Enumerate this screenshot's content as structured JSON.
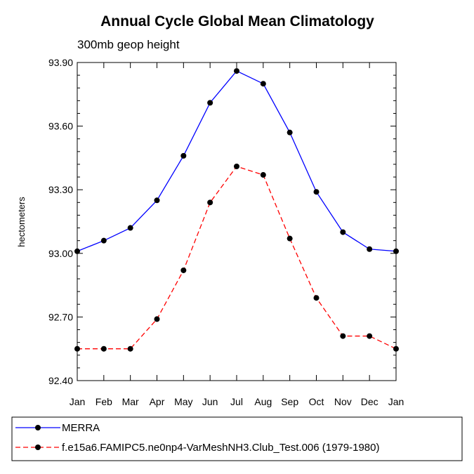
{
  "chart_data": {
    "type": "line",
    "title": "Annual Cycle Global Mean Climatology",
    "subtitle": "300mb geop height",
    "xlabel": "",
    "ylabel": "hectometers",
    "categories": [
      "Jan",
      "Feb",
      "Mar",
      "Apr",
      "May",
      "Jun",
      "Jul",
      "Aug",
      "Sep",
      "Oct",
      "Nov",
      "Dec",
      "Jan"
    ],
    "ylim": [
      92.4,
      93.9
    ],
    "yticks": [
      "92.40",
      "92.70",
      "93.00",
      "93.30",
      "93.60",
      "93.90"
    ],
    "grid": false,
    "legend_position": "bottom",
    "series": [
      {
        "name": "MERRA",
        "color": "#0000ff",
        "line_style": "solid",
        "marker": "circle",
        "values": [
          93.01,
          93.06,
          93.12,
          93.25,
          93.46,
          93.71,
          93.86,
          93.8,
          93.57,
          93.29,
          93.1,
          93.02,
          93.01
        ]
      },
      {
        "name": "f.e15a6.FAMIPC5.ne0np4-VarMeshNH3.Club_Test.006 (1979-1980)",
        "color": "#ff0000",
        "line_style": "dashed",
        "marker": "circle",
        "values": [
          92.55,
          92.55,
          92.55,
          92.69,
          92.92,
          93.24,
          93.41,
          93.37,
          93.07,
          92.79,
          92.61,
          92.61,
          92.55
        ]
      }
    ]
  }
}
